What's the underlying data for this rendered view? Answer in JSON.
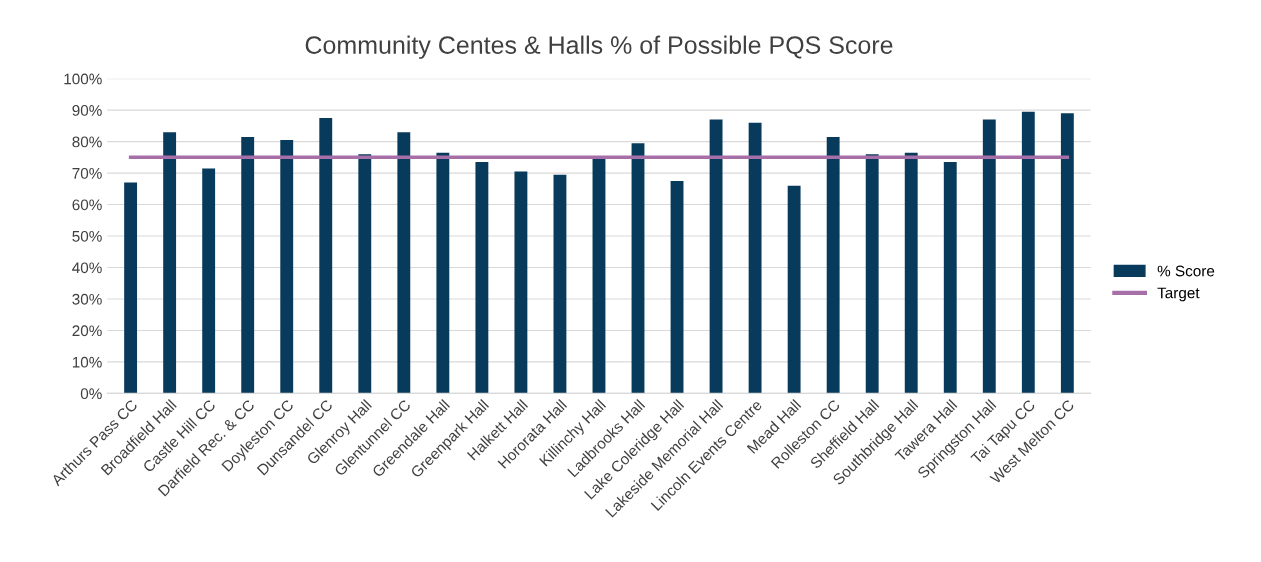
{
  "chart_data": {
    "type": "bar",
    "title": "Community Centes & Halls % of Possible PQS Score",
    "categories": [
      "Arthurs Pass CC",
      "Broadfield Hall",
      "Castle Hill CC",
      "Darfield Rec. & CC",
      "Doyleston CC",
      "Dunsandel CC",
      "Glenroy Hall",
      "Glentunnel CC",
      "Greendale Hall",
      "Greenpark Hall",
      "Halkett Hall",
      "Hororata Hall",
      "Killinchy Hall",
      "Ladbrooks Hall",
      "Lake Coleridge Hall",
      "Lakeside Memorial Hall",
      "Lincoln Events Centre",
      "Mead Hall",
      "Rolleston CC",
      "Sheffield Hall",
      "Southbridge Hall",
      "Tawera Hall",
      "Springston Hall",
      "Tai Tapu CC",
      "West Melton CC"
    ],
    "series": [
      {
        "name": "% Score",
        "color": "#083a5c",
        "values": [
          67,
          83,
          71.5,
          81.5,
          80.5,
          87.5,
          76,
          83,
          76.5,
          73.5,
          70.5,
          69.5,
          74.5,
          79.5,
          67.5,
          87,
          86,
          66,
          81.5,
          76,
          76.5,
          73.5,
          87,
          89.5,
          89
        ]
      },
      {
        "name": "Target",
        "type": "line",
        "color": "#a66fa8",
        "values": [
          75,
          75,
          75,
          75,
          75,
          75,
          75,
          75,
          75,
          75,
          75,
          75,
          75,
          75,
          75,
          75,
          75,
          75,
          75,
          75,
          75,
          75,
          75,
          75,
          75
        ]
      }
    ],
    "ylim": [
      0,
      100
    ],
    "yticks": [
      {
        "value": 0,
        "label": "0%"
      },
      {
        "value": 10,
        "label": "10%"
      },
      {
        "value": 20,
        "label": "20%"
      },
      {
        "value": 30,
        "label": "30%"
      },
      {
        "value": 40,
        "label": "40%"
      },
      {
        "value": 50,
        "label": "50%"
      },
      {
        "value": 60,
        "label": "60%"
      },
      {
        "value": 70,
        "label": "70%"
      },
      {
        "value": 80,
        "label": "80%"
      },
      {
        "value": 90,
        "label": "90%"
      },
      {
        "value": 100,
        "label": "100%"
      }
    ],
    "grid": "y",
    "legend": "right"
  }
}
